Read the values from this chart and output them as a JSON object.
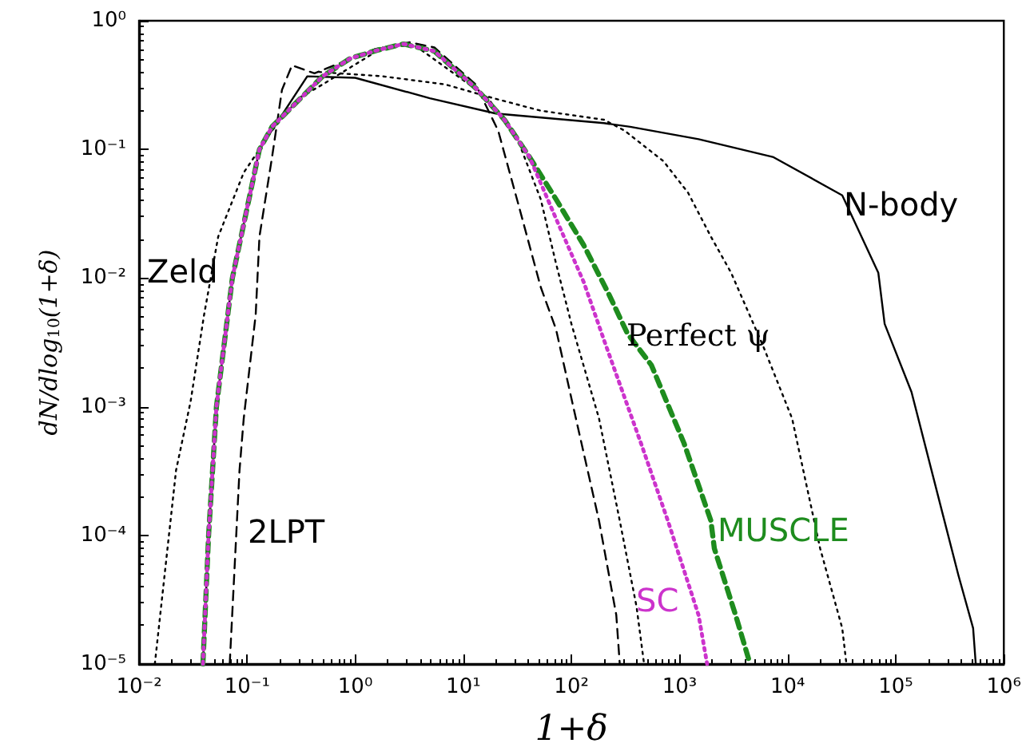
{
  "chart_data": {
    "type": "line",
    "xlabel": "1+δ",
    "ylabel": "dN/dlog$_{10}$(1+δ)",
    "log": "xy",
    "grid": false,
    "legend": false,
    "marker": "none",
    "xlim": [
      0.01,
      1000000
    ],
    "ylim": [
      1e-05,
      1
    ],
    "xticks": [
      {
        "value": 0.01,
        "label": "10⁻²"
      },
      {
        "value": 0.1,
        "label": "10⁻¹"
      },
      {
        "value": 1,
        "label": "10⁰"
      },
      {
        "value": 10,
        "label": "10¹"
      },
      {
        "value": 100,
        "label": "10²"
      },
      {
        "value": 1000,
        "label": "10³"
      },
      {
        "value": 10000,
        "label": "10⁴"
      },
      {
        "value": 100000,
        "label": "10⁵"
      },
      {
        "value": 1000000,
        "label": "10⁶"
      }
    ],
    "yticks": [
      {
        "value": 1e-05,
        "label": "10⁻⁵"
      },
      {
        "value": 0.0001,
        "label": "10⁻⁴"
      },
      {
        "value": 0.001,
        "label": "10⁻³"
      },
      {
        "value": 0.01,
        "label": "10⁻²"
      },
      {
        "value": 0.1,
        "label": "10⁻¹"
      },
      {
        "value": 1,
        "label": "10⁰"
      }
    ],
    "series": [
      {
        "name": "N-body",
        "color": "#000000",
        "line_style": "solid",
        "x": [
          0.039,
          0.044,
          0.052,
          0.073,
          0.13,
          0.36,
          1,
          4.9,
          20,
          200,
          350,
          1500,
          7400,
          32000,
          69000,
          79000,
          140000,
          270000,
          380000,
          520000,
          550000
        ],
        "values": [
          1e-05,
          0.0001,
          0.001,
          0.01,
          0.1,
          0.37,
          0.36,
          0.25,
          0.19,
          0.16,
          0.15,
          0.12,
          0.087,
          0.044,
          0.011,
          0.0044,
          0.0013,
          0.00015,
          4.9e-05,
          1.9e-05,
          1e-05
        ]
      },
      {
        "name": "Perfect ψ",
        "color": "#000000",
        "line_style": "dotted",
        "x": [
          0.46,
          1.8,
          6.8,
          19,
          52,
          200,
          310,
          710,
          1200,
          1950,
          3000,
          5900,
          11000,
          20000,
          32000,
          35000
        ],
        "values": [
          0.4,
          0.37,
          0.32,
          0.25,
          0.2,
          0.17,
          0.14,
          0.081,
          0.046,
          0.021,
          0.011,
          0.003,
          0.00081,
          7.9e-05,
          1.9e-05,
          1e-05
        ]
      },
      {
        "name": "Zeld",
        "color": "#000000",
        "line_style": "dotted",
        "x": [
          0.014,
          0.022,
          0.03,
          0.04,
          0.054,
          0.093,
          0.17,
          0.3,
          0.5,
          1.8,
          3.5,
          17,
          33,
          52,
          72,
          100,
          180,
          280,
          400,
          470
        ],
        "values": [
          1e-05,
          0.00032,
          0.0011,
          0.0052,
          0.021,
          0.066,
          0.14,
          0.25,
          0.32,
          0.62,
          0.65,
          0.25,
          0.11,
          0.041,
          0.013,
          0.0044,
          0.00081,
          0.00013,
          2.8e-05,
          1e-05
        ]
      },
      {
        "name": "2LPT",
        "color": "#000000",
        "line_style": "dashed",
        "x": [
          0.069,
          0.085,
          0.093,
          0.12,
          0.13,
          0.17,
          0.21,
          0.26,
          0.42,
          1.5,
          3.2,
          5.4,
          13,
          21,
          33,
          52,
          72,
          110,
          180,
          260,
          280
        ],
        "values": [
          1e-05,
          0.00032,
          0.00081,
          0.0052,
          0.021,
          0.087,
          0.29,
          0.45,
          0.39,
          0.6,
          0.68,
          0.62,
          0.32,
          0.14,
          0.035,
          0.0085,
          0.004,
          0.00081,
          0.00013,
          2.4e-05,
          1e-05
        ]
      },
      {
        "name": "MUSCLE",
        "color": "#1e8c1e",
        "line_style": "dashed",
        "x": [
          0.039,
          0.044,
          0.052,
          0.073,
          0.13,
          0.17,
          0.5,
          0.9,
          1.6,
          2.8,
          5.4,
          13,
          24,
          41,
          72,
          130,
          220,
          330,
          550,
          1100,
          1950,
          2100,
          3300,
          4500
        ],
        "values": [
          1e-05,
          0.0001,
          0.001,
          0.01,
          0.1,
          0.15,
          0.37,
          0.51,
          0.59,
          0.66,
          0.58,
          0.3,
          0.17,
          0.087,
          0.041,
          0.018,
          0.0076,
          0.0037,
          0.0021,
          0.00052,
          0.00013,
          7.9e-05,
          2.4e-05,
          1e-05
        ]
      },
      {
        "name": "SC",
        "color": "#cc33cc",
        "line_style": "dotted",
        "x": [
          0.039,
          0.044,
          0.052,
          0.073,
          0.13,
          0.17,
          0.5,
          0.9,
          1.6,
          2.8,
          5.4,
          13,
          24,
          41,
          72,
          130,
          200,
          440,
          780,
          1500,
          1800
        ],
        "values": [
          1e-05,
          0.0001,
          0.001,
          0.01,
          0.1,
          0.15,
          0.37,
          0.51,
          0.59,
          0.66,
          0.58,
          0.3,
          0.17,
          0.087,
          0.029,
          0.0093,
          0.0033,
          0.00052,
          0.00013,
          2.4e-05,
          1e-05
        ]
      }
    ]
  }
}
